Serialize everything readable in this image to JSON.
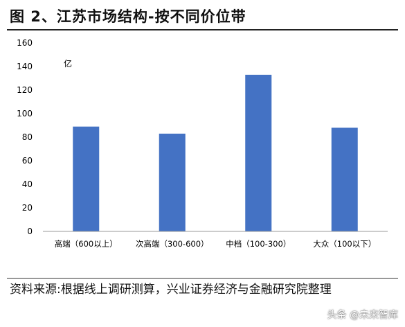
{
  "title": "图 2、江苏市场结构-按不同价位带",
  "source": "资料来源:根据线上调研测算，兴业证券经济与金融研究院整理",
  "watermark": "头条 @未来智库",
  "chart_data": {
    "type": "bar",
    "unit_label": "亿",
    "categories": [
      "高端（600以上）",
      "次高端（300-600）",
      "中档（100-300）",
      "大众（100以下）"
    ],
    "values": [
      89,
      83,
      133,
      88
    ],
    "ylim": [
      0,
      160
    ],
    "yticks": [
      0,
      20,
      40,
      60,
      80,
      100,
      120,
      140,
      160
    ],
    "grid": false,
    "bar_color": "#4472C4"
  }
}
